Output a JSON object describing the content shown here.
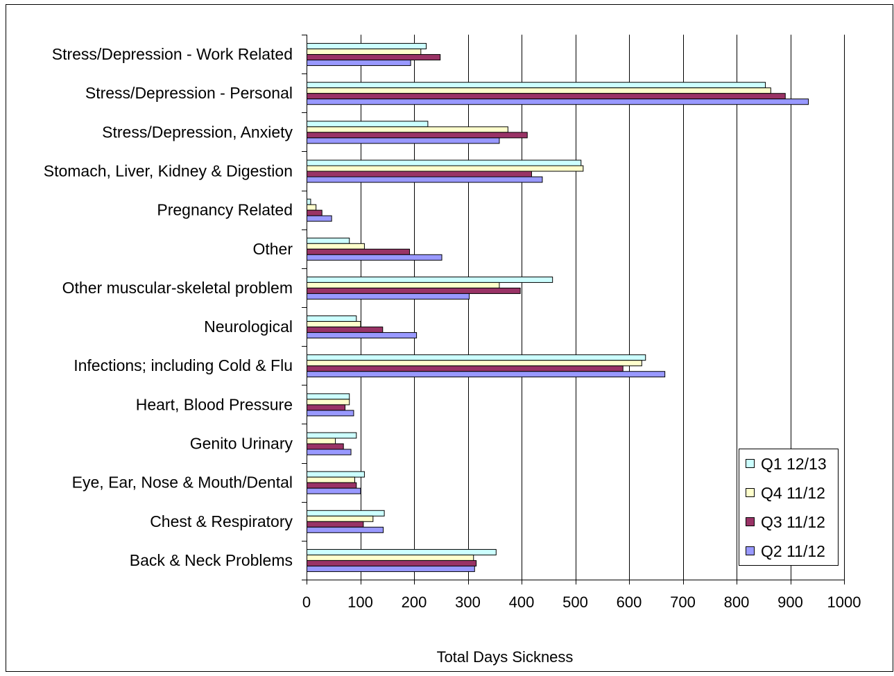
{
  "chart_data": {
    "type": "bar",
    "orientation": "horizontal",
    "title": "",
    "xlabel": "Total Days Sickness",
    "ylabel": "",
    "xlim": [
      0,
      1000
    ],
    "xticks": [
      "0",
      "100",
      "200",
      "300",
      "400",
      "500",
      "600",
      "700",
      "800",
      "900",
      "1000"
    ],
    "grid": true,
    "legend_position": "bottom-right",
    "categories": [
      "Stress/Depression - Work Related",
      "Stress/Depression - Personal",
      "Stress/Depression, Anxiety",
      "Stomach, Liver, Kidney & Digestion",
      "Pregnancy Related",
      "Other",
      "Other muscular-skeletal problem",
      "Neurological",
      "Infections; including Cold & Flu",
      "Heart, Blood Pressure",
      "Genito Urinary",
      "Eye, Ear, Nose & Mouth/Dental",
      "Chest & Respiratory",
      "Back & Neck Problems"
    ],
    "series": [
      {
        "name": "Q1 12/13",
        "color": "#ccffff",
        "values": [
          222,
          853,
          225,
          510,
          7,
          79,
          457,
          92,
          630,
          79,
          92,
          107,
          144,
          352
        ]
      },
      {
        "name": "Q4 11/12",
        "color": "#ffffcc",
        "values": [
          212,
          863,
          374,
          514,
          17,
          107,
          358,
          100,
          623,
          79,
          53,
          89,
          123,
          310
        ]
      },
      {
        "name": "Q3 11/12",
        "color": "#993366",
        "values": [
          248,
          890,
          410,
          418,
          28,
          191,
          397,
          141,
          588,
          71,
          68,
          92,
          105,
          315
        ]
      },
      {
        "name": "Q2 11/12",
        "color": "#9999ff",
        "values": [
          193,
          933,
          358,
          438,
          46,
          251,
          302,
          204,
          666,
          87,
          82,
          100,
          142,
          312
        ]
      }
    ]
  }
}
